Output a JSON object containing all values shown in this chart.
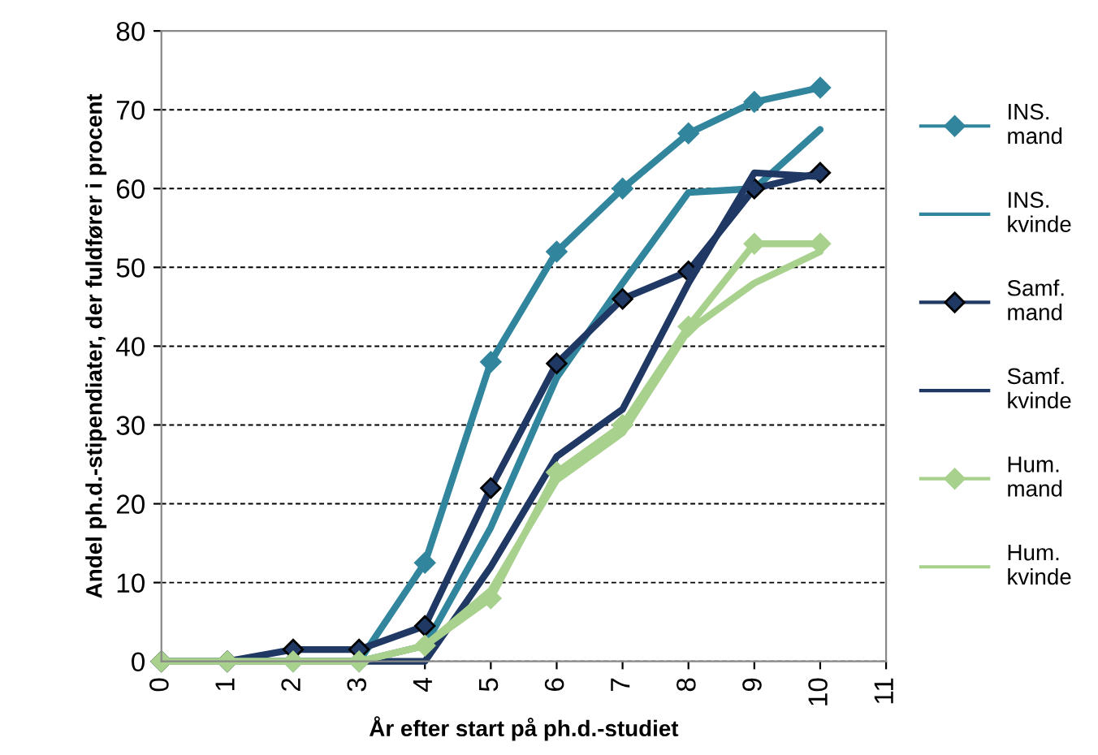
{
  "chart_data": {
    "type": "line",
    "xlabel": "År efter start på ph.d.-studiet",
    "ylabel": "Andel ph.d.-stipendiater, der fuldfører i procent",
    "x": [
      0,
      1,
      2,
      3,
      4,
      5,
      6,
      7,
      8,
      9,
      10
    ],
    "series": [
      {
        "name": "INS. mand",
        "color": "#31859c",
        "marker": "diamond",
        "values": [
          0,
          0,
          0,
          0,
          12.5,
          38,
          52,
          60,
          67,
          71,
          72.8
        ]
      },
      {
        "name": "INS. kvinde",
        "color": "#31859c",
        "marker": "none",
        "values": [
          0,
          0,
          0,
          0,
          2,
          17,
          36,
          48,
          59.5,
          60,
          67.5
        ]
      },
      {
        "name": "Samf. mand",
        "color": "#1f3864",
        "marker": "diamond",
        "values": [
          0,
          0,
          1.5,
          1.5,
          4.5,
          22,
          37.8,
          46,
          49.5,
          60,
          62
        ]
      },
      {
        "name": "Samf. kvinde",
        "color": "#1f3864",
        "marker": "none",
        "values": [
          0,
          0,
          0,
          0,
          0,
          12,
          26,
          32,
          48,
          62,
          61.5
        ]
      },
      {
        "name": "Hum. mand",
        "color": "#a9d18e",
        "marker": "diamond",
        "values": [
          0,
          0,
          0,
          0,
          2,
          8,
          24,
          30,
          42.5,
          53,
          53
        ]
      },
      {
        "name": "Hum. kvinde",
        "color": "#a9d18e",
        "marker": "none",
        "values": [
          0,
          0,
          0,
          0,
          2,
          9,
          23,
          29,
          42,
          48,
          52
        ]
      }
    ],
    "xlim": [
      0,
      11
    ],
    "xticks": [
      0,
      1,
      2,
      3,
      4,
      5,
      6,
      7,
      8,
      9,
      10,
      11
    ],
    "ylim": [
      0,
      80
    ],
    "yticks": [
      0,
      10,
      20,
      30,
      40,
      50,
      60,
      70,
      80
    ],
    "grid": "y",
    "legend": "right",
    "line_style": "solid"
  }
}
